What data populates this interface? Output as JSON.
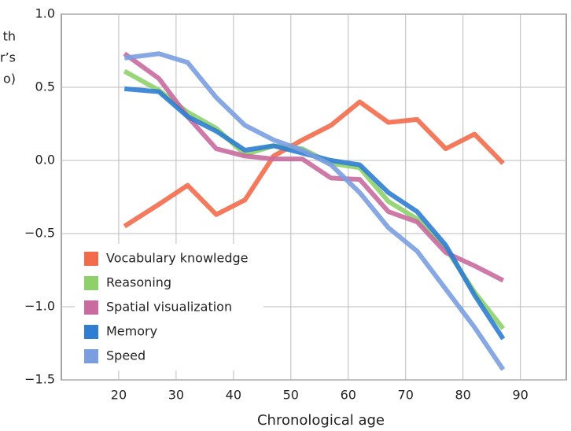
{
  "chart_data": {
    "type": "line",
    "x_label": "Chronological age",
    "y_label_fragments": [
      "th",
      "r’s",
      "o)"
    ],
    "x": [
      21,
      27,
      32,
      37,
      42,
      47,
      52,
      57,
      62,
      67,
      72,
      77,
      82,
      87
    ],
    "xlim": [
      10,
      98
    ],
    "xticks": [
      20,
      30,
      40,
      50,
      60,
      70,
      80,
      90
    ],
    "ylim": [
      -1.5,
      1.0
    ],
    "yticks": [
      {
        "value": -1.5,
        "label": "−1.5"
      },
      {
        "value": -1.0,
        "label": "−1.0"
      },
      {
        "value": -0.5,
        "label": "−0.5"
      },
      {
        "value": 0,
        "label": "0.0"
      },
      {
        "value": 0.5,
        "label": "0.5"
      },
      {
        "value": 1.0,
        "label": "1.0"
      }
    ],
    "grid": true,
    "legend": "lower left",
    "series": [
      {
        "name": "Vocabulary knowledge",
        "color": "#f26b4a",
        "values": [
          -0.45,
          -0.3,
          -0.17,
          -0.37,
          -0.27,
          0.03,
          0.14,
          0.24,
          0.4,
          0.26,
          0.28,
          0.08,
          0.18,
          -0.02
        ]
      },
      {
        "name": "Reasoning",
        "color": "#8ed16b",
        "values": [
          0.61,
          0.48,
          0.33,
          0.22,
          0.04,
          0.1,
          0.08,
          -0.02,
          -0.05,
          -0.28,
          -0.4,
          -0.6,
          -0.9,
          -1.15
        ]
      },
      {
        "name": "Spatial visualization",
        "color": "#c96b9e",
        "values": [
          0.73,
          0.56,
          0.3,
          0.08,
          0.03,
          0.01,
          0.01,
          -0.12,
          -0.13,
          -0.35,
          -0.42,
          -0.63,
          -0.72,
          -0.82
        ]
      },
      {
        "name": "Memory",
        "color": "#2f7ed1",
        "values": [
          0.49,
          0.47,
          0.3,
          0.2,
          0.07,
          0.1,
          0.05,
          0.0,
          -0.03,
          -0.22,
          -0.35,
          -0.58,
          -0.92,
          -1.22
        ]
      },
      {
        "name": "Speed",
        "color": "#7a9ee0",
        "values": [
          0.7,
          0.73,
          0.67,
          0.43,
          0.24,
          0.14,
          0.07,
          -0.03,
          -0.22,
          -0.46,
          -0.62,
          -0.88,
          -1.14,
          -1.43
        ]
      }
    ]
  }
}
